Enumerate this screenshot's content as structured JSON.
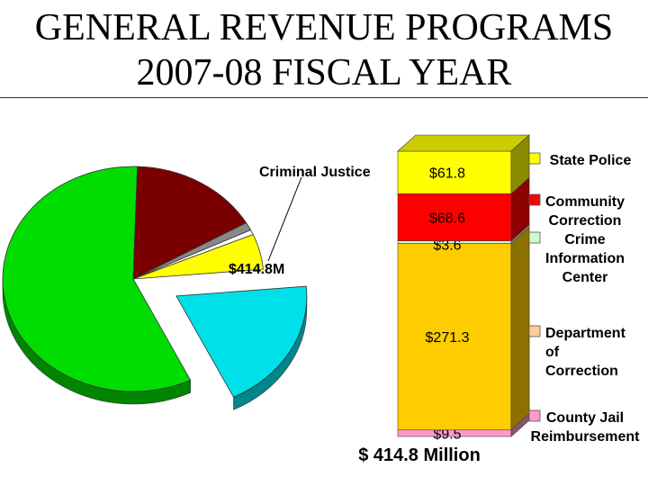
{
  "title_line1": "GENERAL REVENUE PROGRAMS",
  "title_line2": "2007-08 FISCAL YEAR",
  "chart_data": [
    {
      "type": "pie",
      "title": "",
      "slices": [
        {
          "label": "Criminal Justice",
          "value": 414.8,
          "color": "#00e0e8",
          "exploded": true
        },
        {
          "value": 1250,
          "color": "#00dd00"
        },
        {
          "value": 350,
          "color": "#7a0000"
        },
        {
          "value": 25,
          "color": "#888888"
        },
        {
          "value": 15,
          "color": "#ffffff"
        },
        {
          "value": 110,
          "color": "#ffff00"
        }
      ],
      "annotations": [
        "Criminal Justice",
        "$414.8M"
      ]
    },
    {
      "type": "bar",
      "subtype": "stacked",
      "categories": [
        "Criminal Justice"
      ],
      "series": [
        {
          "name": "County Jail Reimbursement",
          "value": 9.5,
          "label": "$9.5",
          "color": "#ff99cc"
        },
        {
          "name": "Department of Correction",
          "value": 271.3,
          "label": "$271.3",
          "color": "#ffcc00"
        },
        {
          "name": "Crime Information Center",
          "value": 3.6,
          "label": "$3.6",
          "color": "#ccffcc"
        },
        {
          "name": "Community Correction",
          "value": 68.6,
          "label": "$68.6",
          "color": "#ff0000"
        },
        {
          "name": "State Police",
          "value": 61.8,
          "label": "$61.8",
          "color": "#ffff00"
        }
      ],
      "total_label": "$ 414.8 Million",
      "legend": {
        "placement": "right",
        "entries": [
          {
            "lines": [
              "State Police"
            ],
            "color": "#ffff00"
          },
          {
            "lines": [
              "Community",
              "Correction"
            ],
            "color": "#ff0000"
          },
          {
            "lines": [
              "Crime",
              "Information",
              "Center"
            ],
            "color": "#ccffcc"
          },
          {
            "lines": [
              "Department",
              "of",
              "Correction"
            ],
            "color": "#ffcc99"
          },
          {
            "lines": [
              "County Jail",
              "Reimbursement"
            ],
            "color": "#ff99cc"
          }
        ]
      }
    }
  ]
}
